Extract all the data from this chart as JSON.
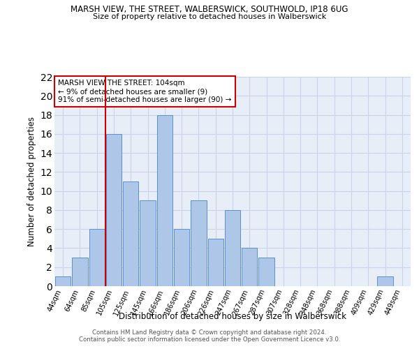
{
  "title": "MARSH VIEW, THE STREET, WALBERSWICK, SOUTHWOLD, IP18 6UG",
  "subtitle": "Size of property relative to detached houses in Walberswick",
  "xlabel": "Distribution of detached houses by size in Walberswick",
  "ylabel": "Number of detached properties",
  "footer1": "Contains HM Land Registry data © Crown copyright and database right 2024.",
  "footer2": "Contains public sector information licensed under the Open Government Licence v3.0.",
  "categories": [
    "44sqm",
    "64sqm",
    "85sqm",
    "105sqm",
    "125sqm",
    "145sqm",
    "166sqm",
    "186sqm",
    "206sqm",
    "226sqm",
    "247sqm",
    "267sqm",
    "287sqm",
    "307sqm",
    "328sqm",
    "348sqm",
    "368sqm",
    "388sqm",
    "409sqm",
    "429sqm",
    "449sqm"
  ],
  "values": [
    1,
    3,
    6,
    16,
    11,
    9,
    18,
    6,
    9,
    5,
    8,
    4,
    3,
    0,
    0,
    0,
    0,
    0,
    0,
    1,
    0
  ],
  "bar_color": "#aec6e8",
  "bar_edge_color": "#5b8fd4",
  "vline_color": "#cc0000",
  "annotation_text": "MARSH VIEW THE STREET: 104sqm\n← 9% of detached houses are smaller (9)\n91% of semi-detached houses are larger (90) →",
  "annotation_box_color": "#cc0000",
  "ylim": [
    0,
    22
  ],
  "yticks": [
    0,
    2,
    4,
    6,
    8,
    10,
    12,
    14,
    16,
    18,
    20,
    22
  ],
  "grid_color": "#c8d4e8",
  "bg_color": "#e8eef8"
}
